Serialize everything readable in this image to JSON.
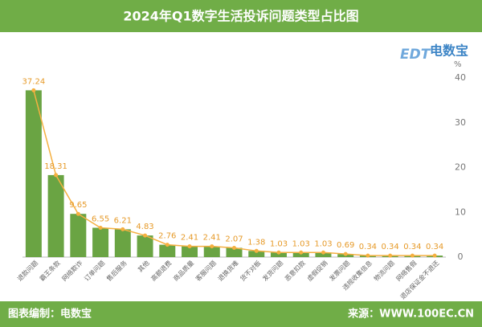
{
  "chart_data": {
    "type": "bar",
    "title": "2024年Q1数字生活投诉问题类型占比图",
    "brand": "电数宝",
    "brand_tag": "EDT",
    "y_unit": "%",
    "footer_left": "图表编制：电数宝",
    "footer_right": "来源：WWW.100EC.CN",
    "categories": [
      "退款问题",
      "霸王条款",
      "网络欺诈",
      "订单问题",
      "售后服务",
      "其他",
      "高额退费",
      "商品质量",
      "客服问题",
      "退换货难",
      "货不对板",
      "发货问题",
      "恶意扣款",
      "虚假促销",
      "发票问题",
      "违规收集信息",
      "物流问题",
      "网络售假",
      "退店保证金不退还"
    ],
    "values": [
      37.24,
      18.31,
      9.65,
      6.55,
      6.21,
      4.83,
      2.76,
      2.41,
      2.41,
      2.07,
      1.38,
      1.03,
      1.03,
      1.03,
      0.69,
      0.34,
      0.34,
      0.34,
      0.34
    ],
    "color": "#6aa443",
    "line_color": "#f5b041",
    "ylim": [
      0,
      40
    ],
    "yticks": [
      0,
      10,
      20,
      30,
      40
    ],
    "grid": false
  }
}
